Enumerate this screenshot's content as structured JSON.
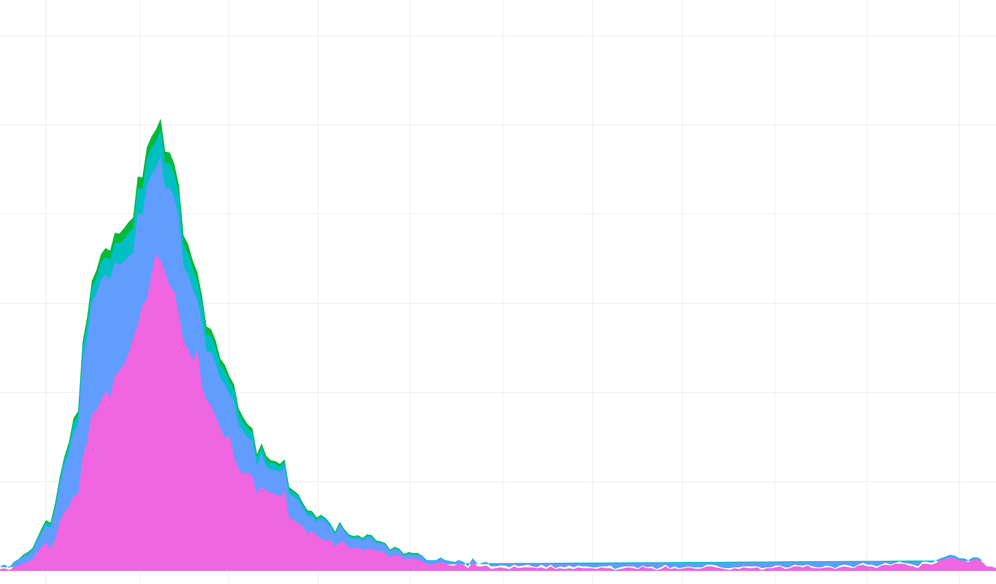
{
  "chart_data": {
    "type": "area",
    "stacked": true,
    "title": "",
    "xlabel": "",
    "ylabel": "",
    "grid": true,
    "legend": "none",
    "xlim": [
      0,
      216
    ],
    "ylim": [
      0,
      64
    ],
    "x_grid_values": [
      10,
      30.3,
      49.6,
      69,
      89,
      109,
      128.5,
      148,
      168,
      188,
      208
    ],
    "y_grid_values": [
      10,
      20,
      30,
      40,
      50,
      60
    ],
    "series": [
      {
        "color": "#f066e0",
        "values": [
          0.2,
          0.3,
          0.1,
          0.4,
          0.6,
          0.8,
          1.0,
          1.2,
          2.0,
          2.6,
          3.2,
          2.5,
          3.5,
          5.5,
          6.6,
          7.2,
          8.4,
          8.6,
          12.7,
          14.6,
          17.6,
          18.0,
          19.1,
          20.2,
          19.5,
          21.8,
          22.5,
          23.1,
          24.4,
          26.1,
          27.6,
          29.7,
          30.5,
          33.2,
          35.5,
          34.8,
          33.5,
          31.9,
          31.3,
          28.7,
          25.7,
          24.9,
          23.6,
          24.8,
          20.7,
          19.2,
          18.5,
          17.3,
          16.0,
          14.9,
          15.2,
          12.8,
          11.4,
          10.9,
          11.0,
          10.7,
          8.6,
          9.5,
          9.0,
          8.8,
          8.6,
          8.3,
          8.9,
          6.0,
          5.7,
          5.3,
          5.0,
          4.2,
          4.5,
          4.0,
          3.6,
          3.4,
          3.5,
          2.7,
          3.3,
          3.2,
          2.6,
          2.5,
          2.7,
          2.3,
          2.5,
          2.5,
          2.2,
          2.3,
          1.9,
          1.6,
          1.7,
          1.8,
          1.3,
          1.4,
          1.4,
          1.2,
          1.1,
          0.7,
          0.8,
          0.8,
          1.0,
          0.8,
          0.6,
          0.6,
          0.8,
          0.7,
          0.3,
          1.0,
          0.5,
          0.5,
          0.6,
          0.2,
          0.3,
          0.4,
          0.3,
          0.2,
          0.5,
          0.3,
          0.4,
          0.4,
          0.4,
          0.3,
          0.4,
          0.2,
          0.5,
          0.2,
          0.3,
          0.2,
          0.3,
          0.2,
          0.4,
          0.3,
          0.3,
          0.3,
          0.2,
          0.4,
          0.3,
          0.3,
          0.1,
          0.2,
          0.3,
          0.4,
          0.3,
          0.2,
          0.5,
          0.3,
          0.3,
          0.1,
          0.2,
          0.5,
          0.2,
          0.3,
          0.2,
          0.3,
          0.4,
          0.3,
          0.2,
          0.3,
          0.5,
          0.5,
          0.4,
          0.3,
          0.2,
          0.1,
          0.3,
          0.2,
          0.4,
          0.3,
          0.3,
          0.4,
          0.1,
          0.3,
          0.3,
          0.4,
          0.5,
          0.2,
          0.3,
          0.5,
          0.5,
          0.4,
          0.6,
          0.3,
          0.3,
          0.3,
          0.4,
          0.4,
          0.2,
          0.4,
          0.5,
          0.4,
          0.3,
          0.6,
          0.7,
          0.5,
          0.5,
          0.3,
          0.6,
          0.7,
          0.6,
          0.8,
          0.8,
          0.8,
          0.6,
          0.5,
          0.3,
          0.8,
          0.8,
          0.7,
          0.9,
          1.2,
          1.3,
          1.5,
          1.4,
          1.2,
          1.1,
          1.0,
          1.2,
          1.3,
          1.0,
          0.5,
          0.5,
          0.3
        ]
      },
      {
        "color": "#619cff",
        "values": [
          0.2,
          0.3,
          0.2,
          0.5,
          0.6,
          0.8,
          0.8,
          1.0,
          1.2,
          1.6,
          1.9,
          2.3,
          3.3,
          4.1,
          5.2,
          6.0,
          7.2,
          7.8,
          11.0,
          11.7,
          12.5,
          13.1,
          13.6,
          13.0,
          13.3,
          12.8,
          11.8,
          11.6,
          10.9,
          9.6,
          12.5,
          10.2,
          12.7,
          11.2,
          9.7,
          11.7,
          9.4,
          11.1,
          10.5,
          10.8,
          8.4,
          8.3,
          8.0,
          5.6,
          7.3,
          5.4,
          6.0,
          6.0,
          5.5,
          6.0,
          4.6,
          6.2,
          5.0,
          4.7,
          3.9,
          3.9,
          3.2,
          3.6,
          2.7,
          2.6,
          2.7,
          2.8,
          2.7,
          2.6,
          2.6,
          2.6,
          2.0,
          2.0,
          1.6,
          1.5,
          2.3,
          2.1,
          1.4,
          1.3,
          1.9,
          1.2,
          1.2,
          1.1,
          1.0,
          1.1,
          1.3,
          1.2,
          0.9,
          0.8,
          1.0,
          0.6,
          0.8,
          0.5,
          0.4,
          0.5,
          0.4,
          0.6,
          0.5,
          0.4,
          0.3,
          0.3,
          0.4,
          0.3,
          0.4,
          0.3,
          0.3,
          0.2,
          0.2,
          0.3,
          0.2,
          0.3,
          0.3,
          0.3,
          0.2,
          0.2,
          0.3,
          0.2,
          0.2,
          0.2,
          0.2,
          0.3,
          0.1,
          0.1,
          0.3,
          0.2,
          0.2,
          0.1,
          0.2,
          0.2,
          0.3,
          0.2,
          0.2,
          0.2,
          0.2,
          0.1,
          0.2,
          0.1,
          0.2,
          0.3,
          0.1,
          0.2,
          0.2,
          0.1,
          0.2,
          0.1,
          0.1,
          0.1,
          0.2,
          0.1,
          0.2,
          0.2,
          0.1,
          0.2,
          0.1,
          0.1,
          0.1,
          0.1,
          0.2,
          0.1,
          0.2,
          0.2,
          0.2,
          0.1,
          0.1,
          0.2,
          0.1,
          0.2,
          0.1,
          0.2,
          0.2,
          0.1,
          0.2,
          0.1,
          0.1,
          0.2,
          0.1,
          0.2,
          0.1,
          0.2,
          0.1,
          0.2,
          0.1,
          0.2,
          0.1,
          0.1,
          0.2,
          0.1,
          0.1,
          0.2,
          0.2,
          0.2,
          0.1,
          0.1,
          0.2,
          0.2,
          0.2,
          0.2,
          0.1,
          0.2,
          0.1,
          0.1,
          0.2,
          0.1,
          0.2,
          0.2,
          0.2,
          0.2,
          0.2,
          0.2,
          0.2,
          0.1,
          0.2,
          0.2,
          0.2,
          0.1,
          0.2,
          0.1,
          0.2,
          0.1,
          0.1
        ]
      },
      {
        "color": "#00bfc4",
        "values": [
          0.1,
          0.1,
          0.1,
          0.1,
          0.1,
          0.1,
          0.2,
          0.2,
          0.3,
          0.3,
          0.4,
          0.4,
          0.5,
          0.6,
          0.7,
          0.8,
          1.0,
          1.0,
          1.4,
          1.5,
          1.6,
          1.8,
          1.9,
          2.0,
          2.1,
          2.2,
          2.4,
          2.5,
          2.6,
          2.7,
          2.8,
          2.9,
          3.0,
          3.0,
          3.0,
          2.9,
          2.8,
          2.7,
          2.6,
          2.5,
          2.4,
          2.3,
          2.2,
          2.1,
          2.0,
          1.9,
          1.8,
          1.7,
          1.6,
          1.5,
          1.4,
          1.3,
          1.2,
          1.1,
          1.0,
          0.9,
          0.9,
          0.8,
          0.8,
          0.7,
          0.7,
          0.6,
          0.6,
          0.5,
          0.5,
          0.5,
          0.4,
          0.4,
          0.4,
          0.3,
          0.3,
          0.3,
          0.3,
          0.3,
          0.2,
          0.2,
          0.2,
          0.2,
          0.2,
          0.2,
          0.2,
          0.2,
          0.2,
          0.1,
          0.1,
          0.1,
          0.1,
          0.1,
          0.1,
          0.1,
          0.1,
          0.1,
          0.1,
          0.1,
          0.1,
          0.1,
          0.1,
          0.1,
          0.1,
          0.1,
          0.1,
          0.1,
          0.1,
          0.1,
          0.1,
          0.1,
          0.1,
          0.1,
          0.1,
          0.1,
          0.1,
          0.1,
          0.1,
          0.1,
          0.1,
          0.1,
          0.1,
          0.1,
          0.1,
          0.1,
          0.1,
          0.1,
          0.1,
          0.1,
          0.1,
          0.1,
          0.1,
          0.1,
          0.1,
          0.1,
          0.1,
          0.1,
          0.1,
          0.1,
          0.1,
          0.1,
          0.1,
          0.1,
          0.1,
          0.1,
          0.1,
          0.1,
          0.1,
          0.1,
          0.1,
          0.1,
          0.1,
          0.1,
          0.1,
          0.1,
          0.1,
          0.1,
          0.1,
          0.1,
          0.1,
          0.1,
          0.1,
          0.1,
          0.1,
          0.1,
          0.1,
          0.1,
          0.1,
          0.1,
          0.1,
          0.1,
          0.1,
          0.1,
          0.1,
          0.1,
          0.1,
          0.1,
          0.1,
          0.1,
          0.1,
          0.1,
          0.1,
          0.1,
          0.1,
          0.1,
          0.1,
          0.1,
          0.1,
          0.1,
          0.1,
          0.1,
          0.1,
          0.1,
          0.1,
          0.1,
          0.1,
          0.1,
          0.1,
          0.1,
          0.1,
          0.1,
          0.1,
          0.1,
          0.1,
          0.1,
          0.1,
          0.1,
          0.1,
          0.1,
          0.1,
          0.1,
          0.1,
          0.1,
          0.1,
          0.1,
          0.1,
          0.1,
          0.1,
          0.1,
          0.1,
          0.1,
          0.1,
          0.1,
          0.1,
          0.1,
          0.1
        ]
      },
      {
        "color": "#00ba38",
        "values": [
          0.0,
          0.0,
          0.0,
          0.0,
          0.0,
          0.1,
          0.1,
          0.1,
          0.1,
          0.2,
          0.2,
          0.2,
          0.3,
          0.3,
          0.3,
          0.4,
          0.5,
          0.5,
          0.6,
          0.7,
          0.8,
          0.8,
          0.9,
          1.0,
          1.0,
          1.1,
          1.1,
          1.2,
          1.2,
          1.2,
          1.3,
          1.3,
          1.3,
          1.3,
          1.3,
          1.3,
          1.3,
          1.2,
          1.2,
          1.2,
          1.1,
          1.1,
          1.0,
          1.0,
          0.9,
          0.9,
          0.8,
          0.8,
          0.7,
          0.7,
          0.6,
          0.6,
          0.6,
          0.5,
          0.5,
          0.5,
          0.4,
          0.4,
          0.4,
          0.3,
          0.3,
          0.3,
          0.3,
          0.3,
          0.2,
          0.2,
          0.2,
          0.2,
          0.2,
          0.2,
          0.1,
          0.1,
          0.1,
          0.1,
          0.1,
          0.1,
          0.1,
          0.1,
          0.1,
          0.1,
          0.1,
          0.1,
          0.1,
          0.1,
          0.1,
          0.1,
          0.1,
          0.1,
          0.1,
          0.1,
          0.1,
          0.1,
          0.0,
          0.0,
          0.0,
          0.0,
          0.0,
          0.0,
          0.0,
          0.0,
          0.0,
          0.0,
          0.0,
          0.0,
          0.0,
          0.0,
          0.0,
          0.0,
          0.0,
          0.0,
          0.0,
          0.0,
          0.0,
          0.0,
          0.0,
          0.0,
          0.0,
          0.0,
          0.0,
          0.0,
          0.0,
          0.0,
          0.0,
          0.0,
          0.0,
          0.0,
          0.0,
          0.0,
          0.0,
          0.0,
          0.0,
          0.0,
          0.0,
          0.0,
          0.0,
          0.0,
          0.0,
          0.0,
          0.0,
          0.0,
          0.0,
          0.0,
          0.0,
          0.0,
          0.0,
          0.0,
          0.0,
          0.0,
          0.0,
          0.0,
          0.0,
          0.0,
          0.0,
          0.0,
          0.0,
          0.0,
          0.0,
          0.0,
          0.0,
          0.0,
          0.0,
          0.0,
          0.0,
          0.0,
          0.0,
          0.0,
          0.0,
          0.0,
          0.0,
          0.0,
          0.0,
          0.0,
          0.0,
          0.0,
          0.0,
          0.0,
          0.0,
          0.0,
          0.0,
          0.0,
          0.0,
          0.0,
          0.0,
          0.0,
          0.0,
          0.0,
          0.0,
          0.0,
          0.0,
          0.0,
          0.0,
          0.0,
          0.0,
          0.0,
          0.0,
          0.0,
          0.0,
          0.0,
          0.0,
          0.0,
          0.0,
          0.0,
          0.0,
          0.0,
          0.0,
          0.0,
          0.0,
          0.0,
          0.0,
          0.0,
          0.0,
          0.0,
          0.0,
          0.0,
          0.0,
          0.0,
          0.0,
          0.0,
          0.0,
          0.0
        ]
      }
    ]
  }
}
